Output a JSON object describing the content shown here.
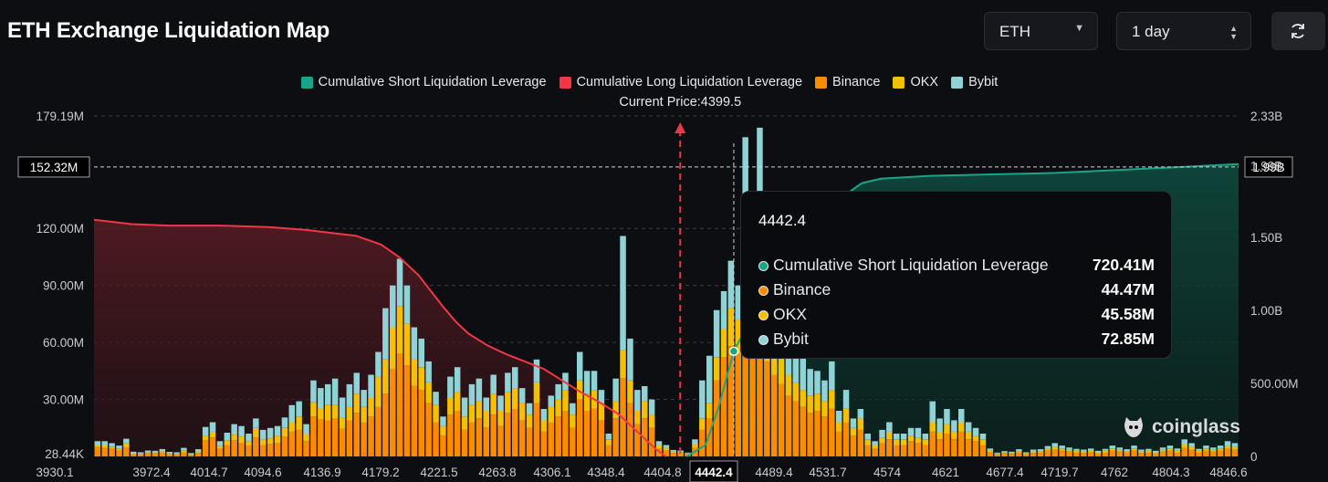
{
  "header": {
    "title": "ETH Exchange Liquidation Map",
    "coin_select": "ETH",
    "range_select": "1 day"
  },
  "legend": [
    {
      "label": "Cumulative Short Liquidation Leverage",
      "color": "#17a589"
    },
    {
      "label": "Cumulative Long Liquidation Leverage",
      "color": "#f23645"
    },
    {
      "label": "Binance",
      "color": "#fb8c00"
    },
    {
      "label": "OKX",
      "color": "#f5c000"
    },
    {
      "label": "Bybit",
      "color": "#8fd3d7"
    }
  ],
  "current_price_label": "Current Price:4399.5",
  "tooltip": {
    "price": "4442.4",
    "rows": [
      {
        "label": "Cumulative Short Liquidation Leverage",
        "value": "720.41M",
        "color": "#17a589"
      },
      {
        "label": "Binance",
        "value": "44.47M",
        "color": "#fb8c00"
      },
      {
        "label": "OKX",
        "value": "45.58M",
        "color": "#f5c000"
      },
      {
        "label": "Bybit",
        "value": "72.85M",
        "color": "#8fd3d7"
      }
    ]
  },
  "watermark": "coinglass",
  "chart_data": {
    "type": "bar",
    "xlim": [
      3930.1,
      4846.6
    ],
    "x_ticks": [
      "3930.1",
      "3972.4",
      "4014.7",
      "4094.6",
      "4136.9",
      "4179.2",
      "4221.5",
      "4263.8",
      "4306.1",
      "4348.4",
      "4404.8",
      "4442.4",
      "4489.4",
      "4531.7",
      "4574",
      "4621",
      "4677.4",
      "4719.7",
      "4762",
      "4804.3",
      "4846.6"
    ],
    "y_left_ticks": [
      "179.19M",
      "120.00M",
      "90.00M",
      "60.00M",
      "30.00M",
      "28.44K"
    ],
    "y_left_values": [
      179.19,
      120,
      90,
      60,
      30,
      0
    ],
    "y_right_ticks": [
      "2.33B",
      "1.99B",
      "1.50B",
      "1.00B",
      "500.00M",
      "0"
    ],
    "y_right_values": [
      2.33,
      1.99,
      1.5,
      1.0,
      0.5,
      0
    ],
    "crosshair": {
      "left_label": "152.32M",
      "right_label": "1.99B",
      "left_value": 152.32,
      "x": 4442.4
    },
    "current_price": 4399.5,
    "long_cumulative_B": [
      [
        3930.1,
        1.62
      ],
      [
        3960,
        1.59
      ],
      [
        3990,
        1.58
      ],
      [
        4030,
        1.58
      ],
      [
        4070,
        1.57
      ],
      [
        4100,
        1.55
      ],
      [
        4120,
        1.53
      ],
      [
        4140,
        1.51
      ],
      [
        4160,
        1.45
      ],
      [
        4175,
        1.36
      ],
      [
        4190,
        1.24
      ],
      [
        4200,
        1.13
      ],
      [
        4210,
        1.02
      ],
      [
        4220,
        0.92
      ],
      [
        4230,
        0.84
      ],
      [
        4245,
        0.76
      ],
      [
        4260,
        0.7
      ],
      [
        4275,
        0.65
      ],
      [
        4290,
        0.6
      ],
      [
        4305,
        0.52
      ],
      [
        4320,
        0.44
      ],
      [
        4335,
        0.37
      ],
      [
        4350,
        0.29
      ],
      [
        4360,
        0.21
      ],
      [
        4370,
        0.13
      ],
      [
        4380,
        0.05
      ],
      [
        4388,
        0.0
      ]
    ],
    "short_cumulative_B": [
      [
        4404.8,
        0.0
      ],
      [
        4420,
        0.08
      ],
      [
        4430,
        0.33
      ],
      [
        4442.4,
        0.72
      ],
      [
        4455,
        0.92
      ],
      [
        4470,
        1.1
      ],
      [
        4490,
        1.3
      ],
      [
        4510,
        1.6
      ],
      [
        4530,
        1.78
      ],
      [
        4545,
        1.87
      ],
      [
        4560,
        1.9
      ],
      [
        4600,
        1.92
      ],
      [
        4650,
        1.93
      ],
      [
        4700,
        1.94
      ],
      [
        4750,
        1.96
      ],
      [
        4800,
        1.98
      ],
      [
        4846.6,
        2.0
      ]
    ],
    "series": [
      {
        "name": "Binance",
        "values": [
          5.0,
          4.5,
          4.0,
          3.2,
          4.8,
          1.2,
          1.0,
          1.5,
          1.5,
          2.0,
          1.0,
          1.0,
          2.2,
          0.8,
          1.8,
          8.5,
          10.0,
          4.0,
          6.0,
          8.5,
          7.0,
          5.5,
          10.0,
          6.0,
          6.5,
          7.0,
          10.5,
          13.0,
          14.0,
          8.0,
          21.0,
          19.5,
          19.0,
          20.0,
          14.5,
          19.0,
          23.0,
          18.0,
          21.0,
          26.0,
          33.0,
          46.0,
          54.0,
          48.0,
          37.0,
          35.0,
          28.0,
          18.0,
          11.0,
          22.0,
          24.0,
          14.0,
          18.0,
          20.0,
          15.0,
          22.0,
          16.0,
          23.0,
          25.0,
          19.0,
          15.0,
          28.0,
          13.0,
          18.0,
          21.0,
          24.0,
          15.0,
          30.0,
          24.0,
          25.0,
          19.0,
          6.0,
          20.0,
          41.0,
          28.0,
          17.0,
          20.0,
          15.0,
          4.0,
          3.0,
          1.8,
          1.5,
          1.0,
          4.5,
          14.0,
          20.0,
          40.0,
          52.0,
          58.0,
          54.0,
          59.0,
          58.0,
          59.0,
          50.0,
          43.0,
          38.0,
          32.0,
          29.0,
          26.0,
          23.0,
          24.0,
          21.0,
          25.0,
          13.0,
          18.0,
          11.0,
          14.0,
          6.0,
          4.0,
          7.0,
          9.0,
          6.0,
          6.0,
          8.0,
          7.0,
          6.0,
          13.0,
          9.0,
          12.0,
          9.0,
          13.0,
          9.0,
          8.0,
          6.0,
          2.2,
          1.0,
          1.5,
          1.3,
          2.0,
          1.2,
          1.8,
          2.0,
          3.0,
          3.5,
          3.0,
          2.5,
          2.0,
          1.8,
          2.2,
          1.5,
          2.0,
          3.0,
          2.5,
          2.0,
          3.0,
          1.8,
          2.0,
          1.5,
          2.5,
          3.0,
          2.0,
          4.5,
          3.5,
          2.0,
          3.0,
          2.5,
          3.0,
          4.0,
          3.5
        ]
      },
      {
        "name": "OKX",
        "values": [
          1.0,
          1.5,
          1.2,
          1.0,
          2.0,
          0.5,
          0.5,
          0.6,
          0.5,
          0.7,
          0.6,
          0.5,
          0.8,
          0.4,
          0.8,
          2.5,
          3.0,
          1.5,
          2.5,
          3.0,
          3.5,
          2.5,
          5.0,
          3.0,
          3.0,
          4.0,
          4.5,
          5.0,
          7.0,
          4.0,
          7.5,
          6.0,
          8.0,
          7.0,
          6.0,
          7.0,
          10.0,
          8.0,
          10.0,
          16.0,
          18.0,
          22.0,
          25.0,
          22.0,
          14.0,
          12.0,
          11.0,
          9.0,
          5.0,
          9.0,
          10.0,
          7.0,
          9.0,
          9.0,
          9.0,
          11.0,
          8.0,
          11.0,
          11.0,
          9.0,
          7.0,
          11.0,
          6.0,
          8.0,
          9.0,
          11.0,
          7.0,
          10.0,
          9.0,
          10.0,
          9.0,
          3.0,
          9.0,
          15.0,
          12.0,
          7.0,
          9.0,
          7.0,
          2.0,
          1.5,
          0.8,
          0.8,
          0.5,
          2.0,
          6.0,
          8.0,
          12.0,
          15.0,
          20.0,
          18.0,
          20.0,
          20.0,
          20.0,
          16.0,
          15.0,
          13.0,
          11.0,
          10.0,
          9.0,
          9.0,
          9.0,
          8.0,
          10.0,
          5.0,
          7.0,
          4.0,
          6.0,
          3.0,
          2.0,
          3.0,
          4.0,
          3.0,
          3.0,
          3.0,
          3.0,
          3.0,
          5.0,
          4.0,
          5.0,
          4.0,
          5.0,
          4.0,
          3.0,
          3.0,
          1.0,
          0.5,
          0.5,
          0.5,
          0.8,
          0.5,
          0.8,
          0.8,
          1.0,
          1.5,
          1.2,
          1.0,
          1.0,
          0.8,
          1.0,
          0.7,
          1.0,
          1.2,
          1.0,
          0.8,
          1.2,
          0.8,
          1.0,
          0.7,
          1.0,
          1.2,
          1.0,
          2.0,
          1.5,
          1.0,
          1.2,
          1.0,
          1.2,
          1.5,
          1.5
        ]
      },
      {
        "name": "Bybit",
        "values": [
          2.0,
          2.0,
          1.8,
          1.5,
          2.5,
          0.8,
          0.7,
          1.0,
          1.0,
          1.2,
          0.8,
          0.7,
          1.5,
          0.6,
          1.2,
          4.5,
          5.0,
          2.5,
          4.0,
          5.5,
          5.5,
          4.0,
          5.0,
          5.0,
          5.5,
          5.0,
          5.5,
          9.0,
          8.0,
          5.0,
          11.5,
          10.5,
          11.0,
          14.0,
          10.5,
          12.0,
          11.0,
          9.0,
          12.0,
          13.0,
          27.0,
          22.0,
          25.0,
          20.0,
          17.0,
          15.0,
          11.0,
          7.0,
          5.0,
          11.0,
          13.0,
          10.0,
          11.0,
          12.0,
          7.0,
          10.0,
          8.0,
          10.0,
          11.0,
          8.0,
          6.0,
          12.0,
          6.0,
          6.0,
          8.0,
          9.0,
          6.0,
          15.0,
          12.0,
          10.0,
          7.0,
          3.0,
          12.0,
          60.0,
          22.0,
          11.0,
          8.0,
          8.0,
          2.0,
          1.5,
          0.8,
          0.8,
          0.5,
          2.5,
          20.0,
          25.0,
          25.0,
          20.0,
          25.0,
          18.0,
          89.0,
          60.0,
          94.0,
          64.0,
          45.0,
          39.0,
          32.0,
          24.0,
          20.0,
          14.0,
          12.0,
          11.0,
          15.0,
          6.0,
          10.0,
          5.0,
          5.0,
          3.0,
          2.0,
          4.0,
          5.0,
          3.0,
          3.0,
          4.0,
          5.0,
          3.0,
          11.0,
          7.0,
          8.0,
          6.0,
          7.0,
          5.0,
          4.0,
          3.0,
          1.0,
          0.5,
          0.8,
          0.7,
          1.0,
          0.5,
          1.0,
          1.0,
          1.5,
          2.0,
          1.5,
          1.2,
          1.0,
          1.0,
          1.0,
          0.8,
          1.0,
          1.5,
          1.2,
          1.0,
          1.5,
          1.0,
          1.0,
          0.8,
          1.2,
          1.5,
          1.2,
          2.5,
          2.0,
          1.0,
          1.5,
          1.2,
          1.5,
          2.5,
          2.0
        ]
      }
    ]
  }
}
